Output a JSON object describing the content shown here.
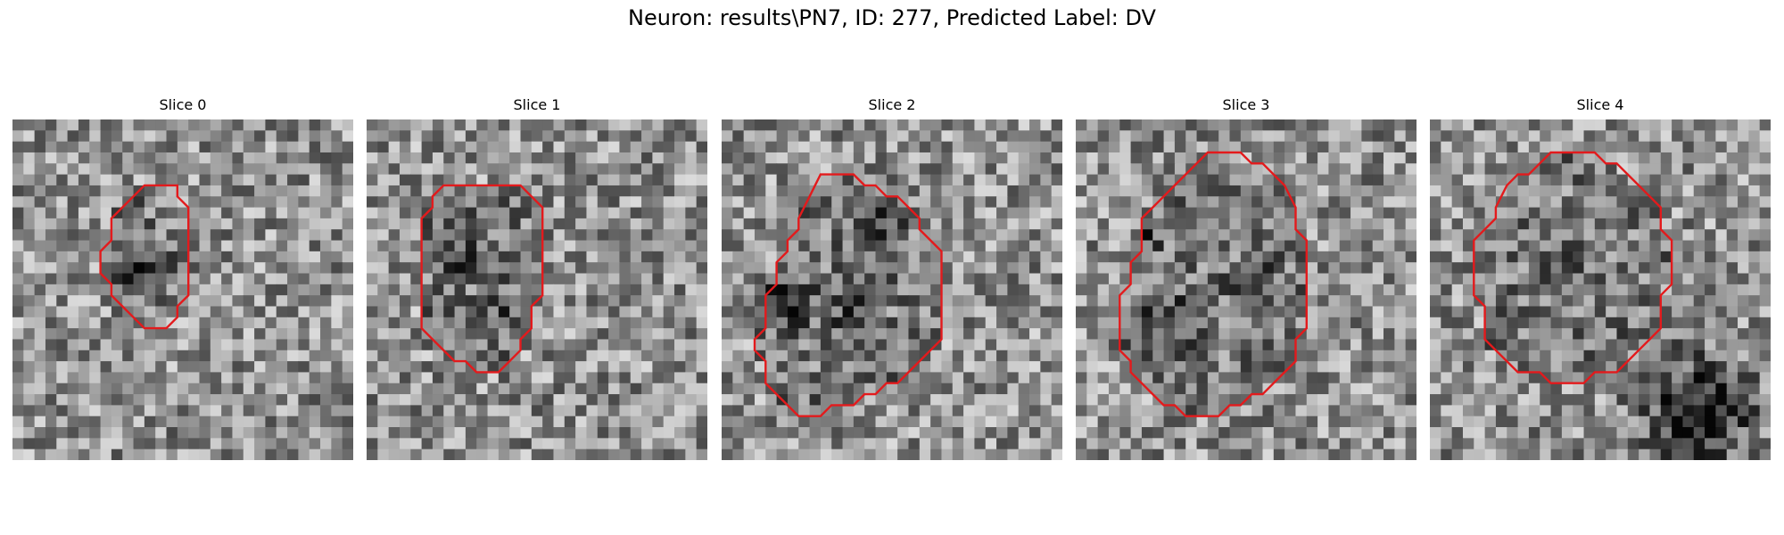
{
  "figure": {
    "title": "Neuron: results\\PN7, ID: 277, Predicted Label: DV"
  },
  "colors": {
    "contour": "#e31a1c",
    "background": "#ffffff"
  },
  "panels": [
    {
      "title": "Slice 0",
      "seed": 11,
      "contour": [
        [
          13,
          6
        ],
        [
          15,
          6
        ],
        [
          15,
          7
        ],
        [
          16,
          8
        ],
        [
          16,
          16
        ],
        [
          15,
          17
        ],
        [
          15,
          18
        ],
        [
          14,
          19
        ],
        [
          12,
          19
        ],
        [
          11,
          18
        ],
        [
          10,
          17
        ],
        [
          9,
          16
        ],
        [
          9,
          15
        ],
        [
          8,
          14
        ],
        [
          8,
          12
        ],
        [
          9,
          11
        ],
        [
          9,
          9
        ],
        [
          10,
          8
        ],
        [
          11,
          7
        ],
        [
          12,
          6
        ]
      ],
      "dark_blobs": [
        [
          11,
          13,
          1.2,
          70
        ]
      ]
    },
    {
      "title": "Slice 1",
      "seed": 23,
      "contour": [
        [
          10,
          6
        ],
        [
          14,
          6
        ],
        [
          15,
          7
        ],
        [
          16,
          8
        ],
        [
          16,
          16
        ],
        [
          15,
          17
        ],
        [
          15,
          19
        ],
        [
          14,
          20
        ],
        [
          14,
          21
        ],
        [
          13,
          22
        ],
        [
          12,
          23
        ],
        [
          10,
          23
        ],
        [
          9,
          22
        ],
        [
          8,
          22
        ],
        [
          6,
          20
        ],
        [
          5,
          19
        ],
        [
          5,
          9
        ],
        [
          6,
          8
        ],
        [
          6,
          7
        ],
        [
          7,
          6
        ]
      ],
      "dark_blobs": [
        [
          8,
          12,
          1.5,
          40
        ],
        [
          12,
          17,
          1.4,
          35
        ]
      ]
    },
    {
      "title": "Slice 2",
      "seed": 37,
      "contour": [
        [
          9,
          5
        ],
        [
          12,
          5
        ],
        [
          13,
          6
        ],
        [
          14,
          6
        ],
        [
          15,
          7
        ],
        [
          16,
          7
        ],
        [
          17,
          8
        ],
        [
          18,
          9
        ],
        [
          18,
          10
        ],
        [
          19,
          11
        ],
        [
          20,
          12
        ],
        [
          20,
          20
        ],
        [
          19,
          21
        ],
        [
          18,
          22
        ],
        [
          17,
          23
        ],
        [
          16,
          24
        ],
        [
          15,
          24
        ],
        [
          14,
          25
        ],
        [
          13,
          25
        ],
        [
          12,
          26
        ],
        [
          10,
          26
        ],
        [
          9,
          27
        ],
        [
          7,
          27
        ],
        [
          6,
          26
        ],
        [
          5,
          25
        ],
        [
          4,
          24
        ],
        [
          4,
          22
        ],
        [
          3,
          21
        ],
        [
          3,
          20
        ],
        [
          4,
          19
        ],
        [
          4,
          16
        ],
        [
          5,
          15
        ],
        [
          5,
          13
        ],
        [
          6,
          12
        ],
        [
          6,
          11
        ],
        [
          7,
          10
        ],
        [
          7,
          9
        ],
        [
          8,
          7
        ]
      ],
      "dark_blobs": [
        [
          5,
          16,
          1.8,
          60
        ],
        [
          14,
          9,
          1.3,
          55
        ],
        [
          11,
          17,
          1.6,
          40
        ]
      ]
    },
    {
      "title": "Slice 3",
      "seed": 49,
      "contour": [
        [
          12,
          3
        ],
        [
          15,
          3
        ],
        [
          16,
          4
        ],
        [
          17,
          4
        ],
        [
          18,
          5
        ],
        [
          19,
          6
        ],
        [
          20,
          8
        ],
        [
          20,
          10
        ],
        [
          21,
          11
        ],
        [
          21,
          19
        ],
        [
          20,
          20
        ],
        [
          20,
          22
        ],
        [
          19,
          23
        ],
        [
          18,
          24
        ],
        [
          17,
          25
        ],
        [
          16,
          25
        ],
        [
          15,
          26
        ],
        [
          14,
          26
        ],
        [
          13,
          27
        ],
        [
          10,
          27
        ],
        [
          9,
          26
        ],
        [
          8,
          26
        ],
        [
          7,
          25
        ],
        [
          6,
          24
        ],
        [
          5,
          23
        ],
        [
          5,
          22
        ],
        [
          4,
          21
        ],
        [
          4,
          16
        ],
        [
          5,
          15
        ],
        [
          5,
          13
        ],
        [
          6,
          12
        ],
        [
          6,
          9
        ],
        [
          7,
          8
        ],
        [
          8,
          7
        ],
        [
          9,
          6
        ],
        [
          10,
          5
        ],
        [
          11,
          4
        ]
      ],
      "dark_blobs": [
        [
          8,
          18,
          1.8,
          60
        ],
        [
          16,
          15,
          1.6,
          50
        ],
        [
          6,
          10,
          1.2,
          40
        ]
      ]
    },
    {
      "title": "Slice 4",
      "seed": 61,
      "contour": [
        [
          11,
          3
        ],
        [
          15,
          3
        ],
        [
          16,
          4
        ],
        [
          17,
          4
        ],
        [
          18,
          5
        ],
        [
          19,
          6
        ],
        [
          20,
          7
        ],
        [
          21,
          8
        ],
        [
          21,
          10
        ],
        [
          22,
          11
        ],
        [
          22,
          15
        ],
        [
          21,
          16
        ],
        [
          21,
          19
        ],
        [
          20,
          20
        ],
        [
          19,
          21
        ],
        [
          18,
          22
        ],
        [
          17,
          23
        ],
        [
          15,
          23
        ],
        [
          14,
          24
        ],
        [
          11,
          24
        ],
        [
          10,
          23
        ],
        [
          8,
          23
        ],
        [
          7,
          22
        ],
        [
          6,
          21
        ],
        [
          5,
          20
        ],
        [
          5,
          17
        ],
        [
          4,
          16
        ],
        [
          4,
          11
        ],
        [
          5,
          10
        ],
        [
          6,
          9
        ],
        [
          6,
          8
        ],
        [
          7,
          6
        ],
        [
          8,
          5
        ],
        [
          9,
          5
        ],
        [
          10,
          4
        ]
      ],
      "dark_blobs": [
        [
          24,
          26,
          3.5,
          110
        ],
        [
          12,
          14,
          1.6,
          30
        ]
      ]
    }
  ]
}
